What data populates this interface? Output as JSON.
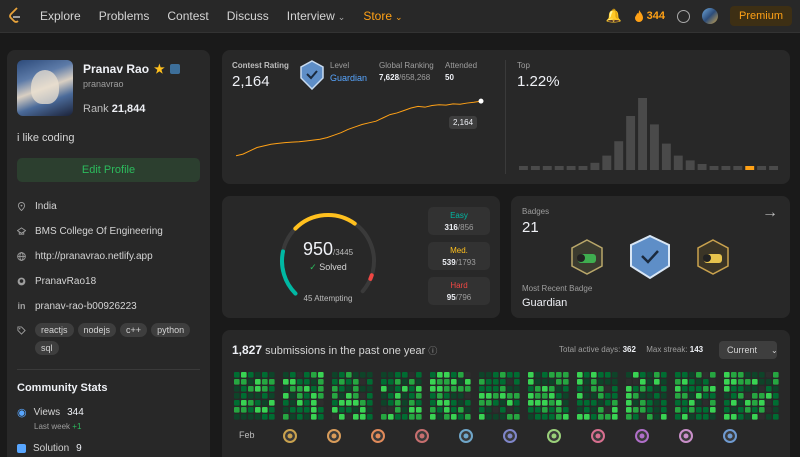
{
  "nav": {
    "items": [
      "Explore",
      "Problems",
      "Contest",
      "Discuss"
    ],
    "interview": "Interview",
    "store": "Store",
    "streak": "344",
    "premium": "Premium",
    "colors": {
      "accent": "#ffa116",
      "easy": "#00b8a3",
      "medium": "#ffc01e",
      "hard": "#ef4743"
    }
  },
  "profile": {
    "name": "Pranav Rao",
    "username": "pranavrao",
    "rank_label": "Rank",
    "rank": "21,844",
    "bio": "i like coding",
    "edit_label": "Edit Profile",
    "info": [
      {
        "icon": "location-icon",
        "text": "India"
      },
      {
        "icon": "school-icon",
        "text": "BMS College Of Engineering"
      },
      {
        "icon": "globe-icon",
        "text": "http://pranavrao.netlify.app"
      },
      {
        "icon": "github-icon",
        "text": "PranavRao18"
      },
      {
        "icon": "linkedin-icon",
        "text": "pranav-rao-b00926223"
      }
    ],
    "tags": [
      "reactjs",
      "nodejs",
      "c++",
      "python",
      "sql"
    ],
    "community": {
      "title": "Community Stats",
      "views_label": "Views",
      "views": "344",
      "views_sub": "Last week",
      "views_delta": "+1",
      "solution_label": "Solution",
      "solution": "9"
    }
  },
  "rating": {
    "label": "Contest Rating",
    "value": "2,164",
    "level_label": "Level",
    "level": "Guardian",
    "global_label": "Global Ranking",
    "global_rank": "7,628",
    "global_total": "/658,268",
    "attended_label": "Attended",
    "attended": "50",
    "tooltip": "2,164",
    "top_label": "Top",
    "top_value": "1.22%",
    "history": [
      1500,
      1520,
      1560,
      1600,
      1620,
      1640,
      1650,
      1660,
      1665,
      1670,
      1680,
      1690,
      1700,
      1720,
      1750,
      1780,
      1820,
      1850,
      1880,
      1900,
      1920,
      1960,
      2000,
      2020,
      2050,
      2080,
      2100,
      2090,
      2110,
      2120,
      2115,
      2130,
      2125,
      2140,
      2150,
      2164
    ],
    "distribution": [
      1,
      1,
      1,
      1,
      2,
      3,
      6,
      12,
      24,
      45,
      60,
      38,
      22,
      12,
      8,
      5,
      3,
      2,
      2,
      1,
      1,
      1
    ],
    "highlight_bucket": 19
  },
  "solved": {
    "total": "950",
    "out_of": "/3445",
    "solved_label": "Solved",
    "attempting": "45 Attempting",
    "easy_label": "Easy",
    "easy": "316",
    "easy_total": "/856",
    "medium_label": "Med.",
    "medium": "539",
    "medium_total": "/1793",
    "hard_label": "Hard",
    "hard": "95",
    "hard_total": "/796",
    "fractions": {
      "easy": 0.3326,
      "medium": 0.5674,
      "hard": 0.1
    }
  },
  "badges": {
    "label": "Badges",
    "count": "21",
    "recent_label": "Most Recent Badge",
    "recent": "Guardian"
  },
  "submissions": {
    "count": "1,827",
    "text": "submissions in the past one year",
    "active_label": "Total active days:",
    "active": "362",
    "streak_label": "Max streak:",
    "streak": "143",
    "selector": "Current",
    "first_month": "Feb"
  }
}
